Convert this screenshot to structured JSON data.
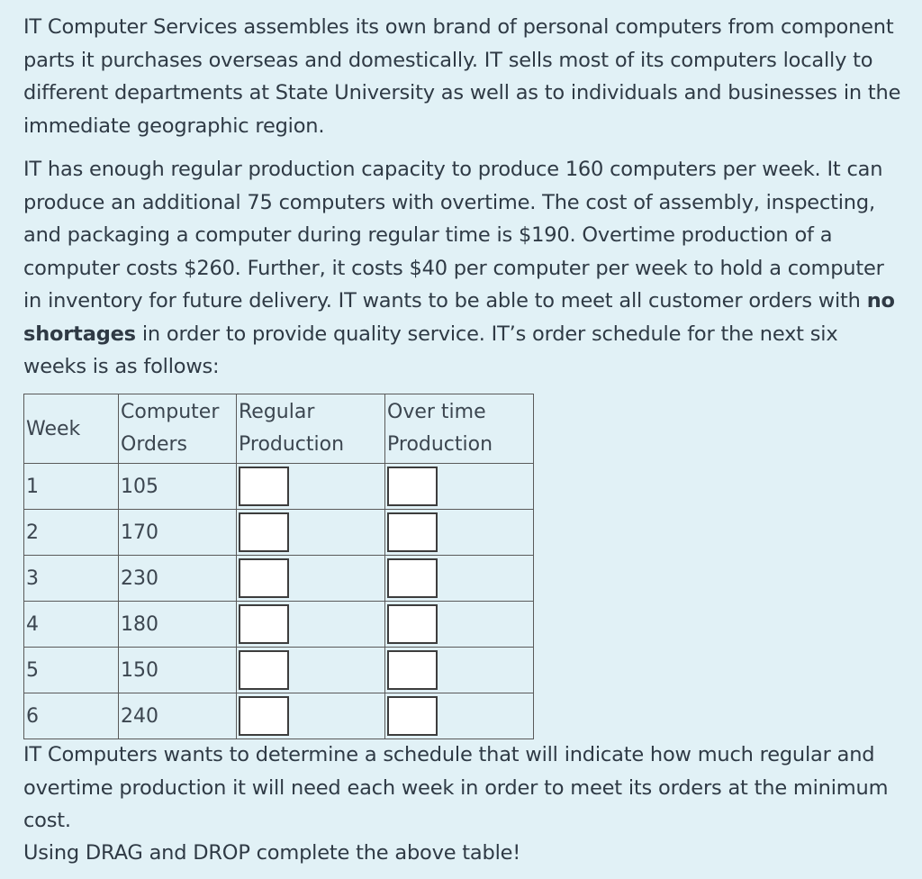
{
  "intro_paragraph": "IT Computer Services assembles its own brand of personal computers from component parts it purchases overseas and domestically. IT sells most of its computers locally to different departments at State University as well as to individuals and businesses in the immediate geographic region.",
  "capacity_paragraph": {
    "before_bold": "IT has enough regular production capacity to produce 160 computers per week. It can produce an additional 75 computers with overtime. The cost of assembly, inspecting, and packaging a computer during regular time is $190. Overtime production of a computer costs $260. Further, it costs $40 per computer per week to hold a computer in inventory for future delivery. IT wants to be able to meet all customer orders with ",
    "bold": "no shortages",
    "after_bold": " in order to provide quality service. IT’s order schedule for the next six weeks is as follows:"
  },
  "table": {
    "headers": {
      "week": "Week",
      "orders_line1": "Computer",
      "orders_line2": "Orders",
      "regular_line1": "Regular",
      "regular_line2": "Production",
      "overtime_line1": "Over time",
      "overtime_line2": "Production"
    },
    "rows": [
      {
        "week": "1",
        "orders": "105"
      },
      {
        "week": "2",
        "orders": "170"
      },
      {
        "week": "3",
        "orders": "230"
      },
      {
        "week": "4",
        "orders": "180"
      },
      {
        "week": "5",
        "orders": "150"
      },
      {
        "week": "6",
        "orders": "240"
      }
    ]
  },
  "goal_paragraph": "IT Computers wants to determine a schedule that will indicate how much regular and overtime production it will need each week in order to meet its orders at the minimum cost.",
  "instruction": "Using DRAG and DROP complete the above table!"
}
